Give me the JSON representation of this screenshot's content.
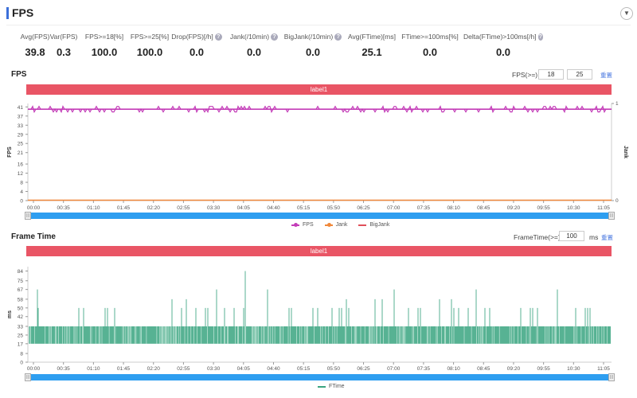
{
  "header": {
    "title": "FPS",
    "collapse_icon": "chevron-down-icon"
  },
  "stats": [
    {
      "label": "Avg(FPS)",
      "value": "39.8",
      "help": false
    },
    {
      "label": "Var(FPS)",
      "value": "0.3",
      "help": false
    },
    {
      "label": "FPS>=18[%]",
      "value": "100.0",
      "help": false
    },
    {
      "label": "FPS>=25[%]",
      "value": "100.0",
      "help": false
    },
    {
      "label": "Drop(FPS)[/h]",
      "value": "0.0",
      "help": true
    },
    {
      "label": "Jank(/10min)",
      "value": "0.0",
      "help": true
    },
    {
      "label": "BigJank(/10min)",
      "value": "0.0",
      "help": true
    },
    {
      "label": "Avg(FTime)[ms]",
      "value": "25.1",
      "help": false
    },
    {
      "label": "FTime>=100ms[%]",
      "value": "0.0",
      "help": false
    },
    {
      "label": "Delta(FTime)>100ms[/h]",
      "value": "0.0",
      "help": true
    }
  ],
  "fps_section": {
    "title": "FPS",
    "threshold_label": "FPS(>=)",
    "threshold_1": "18",
    "threshold_2": "25",
    "reset_label": "重置",
    "label_bar": "label1"
  },
  "frametime_section": {
    "title": "Frame Time",
    "threshold_label": "FrameTime(>=)",
    "threshold": "100",
    "unit": "ms",
    "reset_label": "重置",
    "label_bar": "label1"
  },
  "chart_data": [
    {
      "type": "line",
      "title": "FPS",
      "ylabel": "FPS",
      "y2label": "Jank",
      "yticks": [
        0,
        4,
        8,
        12,
        16,
        21,
        25,
        29,
        33,
        37,
        41
      ],
      "ylim": [
        0,
        41
      ],
      "y2ticks": [
        0,
        1
      ],
      "y2lim": [
        0,
        1
      ],
      "xticks": [
        "00:00",
        "00:35",
        "01:10",
        "01:45",
        "02:20",
        "02:55",
        "03:30",
        "04:05",
        "04:40",
        "05:15",
        "05:50",
        "06:25",
        "07:00",
        "07:35",
        "08:10",
        "08:45",
        "09:20",
        "09:55",
        "10:30",
        "11:05"
      ],
      "series": [
        {
          "name": "FPS",
          "color": "#c33cb8",
          "baseline": 40,
          "fluctuation": [
            39,
            41
          ]
        },
        {
          "name": "Jank",
          "color": "#f0883a",
          "value": 0
        },
        {
          "name": "BigJank",
          "color": "#e0505a",
          "value": 0
        }
      ],
      "legend": "bottom-center"
    },
    {
      "type": "bar",
      "title": "Frame Time",
      "ylabel": "ms",
      "yticks": [
        0,
        8,
        17,
        25,
        33,
        42,
        50,
        58,
        67,
        75,
        84
      ],
      "ylim": [
        0,
        88
      ],
      "xticks": [
        "00:00",
        "00:35",
        "01:10",
        "01:45",
        "02:20",
        "02:55",
        "03:30",
        "04:05",
        "04:40",
        "05:15",
        "05:50",
        "06:25",
        "07:00",
        "07:35",
        "08:10",
        "08:45",
        "09:20",
        "09:55",
        "10:30",
        "11:05"
      ],
      "series": [
        {
          "name": "FTime",
          "color": "#3aa580",
          "typical_range": [
            17,
            33
          ],
          "spikes": [
            50,
            58,
            67,
            84
          ]
        }
      ],
      "legend": "bottom-center"
    }
  ]
}
